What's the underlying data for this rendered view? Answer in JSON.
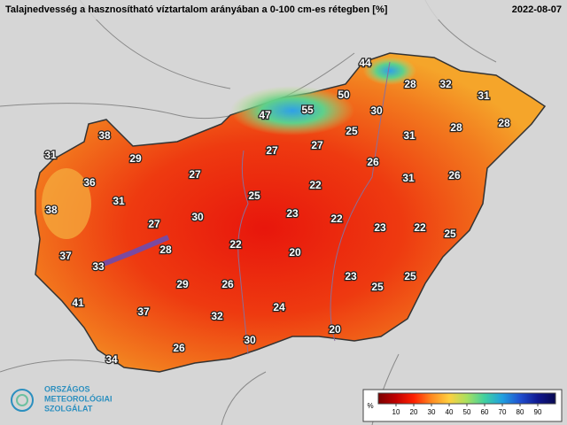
{
  "header": {
    "title": "Talajnedvesség a hasznosítható víztartalom arányában a 0-100 cm-es rétegben [%]",
    "date": "2022-08-07"
  },
  "map": {
    "labels": [
      44,
      28,
      32,
      31,
      47,
      55,
      50,
      30,
      28,
      28,
      38,
      25,
      31,
      27,
      27,
      31,
      29,
      26,
      27,
      36,
      22,
      31,
      26,
      25,
      31,
      38,
      23,
      22,
      30,
      27,
      23,
      22,
      25,
      22,
      20,
      28,
      37,
      33,
      23,
      25,
      29,
      26,
      25,
      41,
      37,
      24,
      32,
      20,
      30,
      26,
      34
    ]
  },
  "legend": {
    "unit": "%",
    "range": [
      0,
      100
    ],
    "ticks": [
      10,
      20,
      30,
      40,
      50,
      60,
      70,
      80,
      90
    ]
  },
  "logo": {
    "lines": [
      "ORSZÁGOS",
      "METEOROLÓGIAI",
      "SZOLGÁLAT"
    ]
  }
}
